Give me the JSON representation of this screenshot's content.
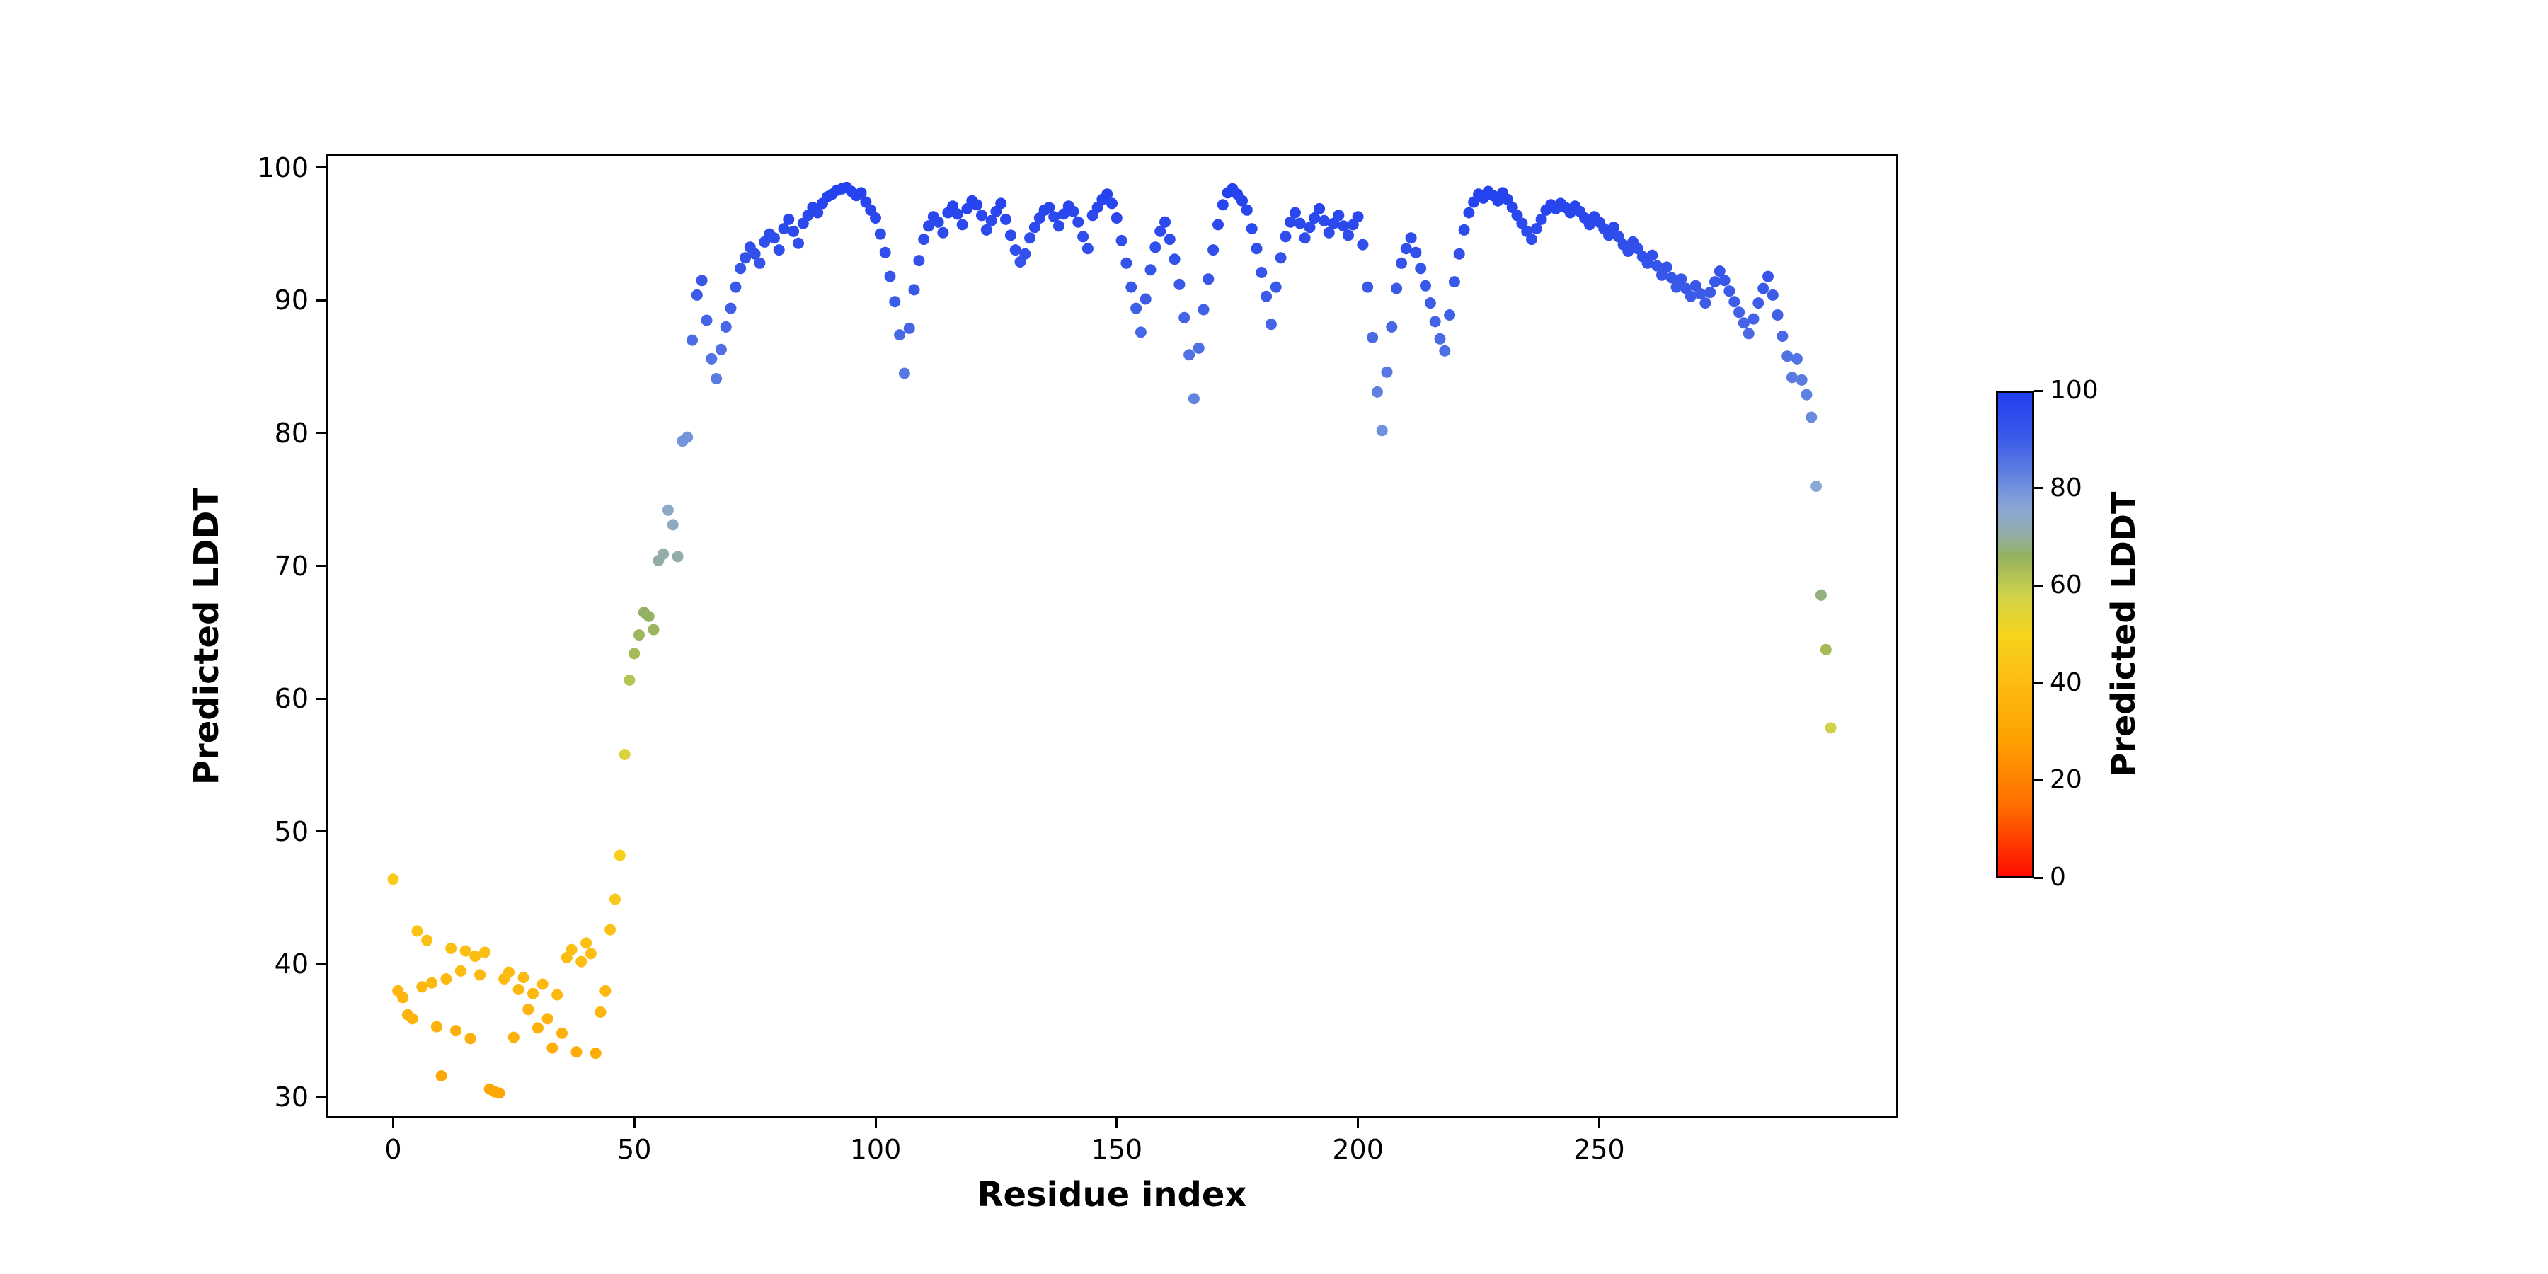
{
  "figure": {
    "background_color": "#ffffff"
  },
  "chart_data": {
    "type": "scatter",
    "title": "",
    "xlabel": "Residue index",
    "ylabel": "Predicted LDDT",
    "grid": false,
    "legend": "none",
    "xlim": [
      -14,
      312
    ],
    "ylim": [
      28.4,
      101.0
    ],
    "xticks": [
      0,
      50,
      100,
      150,
      200,
      250
    ],
    "yticks": [
      30,
      40,
      50,
      60,
      70,
      80,
      90,
      100
    ],
    "marker_size": 8,
    "x_is_index": true,
    "y": [
      46.4,
      38.0,
      37.5,
      36.2,
      35.9,
      42.5,
      38.3,
      41.8,
      38.6,
      35.3,
      31.6,
      38.9,
      41.2,
      35.0,
      39.5,
      41.0,
      34.4,
      40.6,
      39.2,
      40.9,
      30.6,
      30.4,
      30.3,
      38.9,
      39.4,
      34.5,
      38.1,
      39.0,
      36.6,
      37.8,
      35.2,
      38.5,
      35.9,
      33.7,
      37.7,
      34.8,
      40.5,
      41.1,
      33.4,
      40.2,
      41.6,
      40.8,
      33.3,
      36.4,
      38.0,
      42.6,
      44.9,
      48.2,
      55.8,
      61.4,
      63.4,
      64.8,
      66.5,
      66.2,
      65.2,
      70.4,
      70.9,
      74.2,
      73.1,
      70.7,
      79.4,
      79.7,
      87.0,
      90.4,
      91.5,
      88.5,
      85.6,
      84.1,
      86.3,
      88.0,
      89.4,
      91.0,
      92.4,
      93.2,
      94.0,
      93.5,
      92.8,
      94.4,
      95.0,
      94.7,
      93.8,
      95.4,
      96.1,
      95.2,
      94.3,
      95.8,
      96.4,
      97.0,
      96.6,
      97.3,
      97.8,
      98.0,
      98.3,
      98.4,
      98.5,
      98.2,
      97.9,
      98.1,
      97.4,
      96.8,
      96.2,
      95.0,
      93.6,
      91.8,
      89.9,
      87.4,
      84.5,
      87.9,
      90.8,
      93.0,
      94.6,
      95.6,
      96.3,
      95.9,
      95.1,
      96.6,
      97.1,
      96.5,
      95.7,
      96.9,
      97.5,
      97.2,
      96.4,
      95.3,
      96.0,
      96.7,
      97.3,
      96.1,
      94.9,
      93.8,
      92.9,
      93.5,
      94.7,
      95.5,
      96.2,
      96.8,
      97.0,
      96.3,
      95.6,
      96.5,
      97.1,
      96.7,
      95.9,
      94.8,
      93.9,
      96.4,
      97.0,
      97.6,
      98.0,
      97.3,
      96.2,
      94.5,
      92.8,
      91.0,
      89.4,
      87.6,
      90.1,
      92.3,
      94.0,
      95.2,
      95.9,
      94.6,
      93.1,
      91.2,
      88.7,
      85.9,
      82.6,
      86.4,
      89.3,
      91.6,
      93.8,
      95.7,
      97.2,
      98.1,
      98.4,
      98.0,
      97.5,
      96.8,
      95.4,
      93.9,
      92.1,
      90.3,
      88.2,
      91.0,
      93.2,
      94.8,
      95.9,
      96.6,
      95.8,
      94.7,
      95.5,
      96.2,
      96.9,
      96.0,
      95.1,
      95.8,
      96.4,
      95.6,
      94.9,
      95.7,
      96.3,
      94.2,
      91.0,
      87.2,
      83.1,
      80.2,
      84.6,
      88.0,
      90.9,
      92.8,
      93.9,
      94.7,
      93.6,
      92.4,
      91.1,
      89.8,
      88.4,
      87.1,
      86.2,
      88.9,
      91.4,
      93.5,
      95.3,
      96.6,
      97.4,
      98.0,
      97.7,
      98.2,
      97.9,
      97.5,
      98.1,
      97.6,
      97.0,
      96.4,
      95.8,
      95.2,
      94.6,
      95.4,
      96.1,
      96.8,
      97.2,
      96.9,
      97.3,
      97.0,
      96.6,
      97.1,
      96.7,
      96.2,
      95.7,
      96.3,
      95.9,
      95.4,
      94.9,
      95.5,
      94.8,
      94.2,
      93.7,
      94.4,
      93.9,
      93.3,
      92.8,
      93.4,
      92.6,
      91.9,
      92.5,
      91.7,
      91.0,
      91.6,
      90.9,
      90.3,
      91.1,
      90.5,
      89.8,
      90.6,
      91.4,
      92.2,
      91.5,
      90.7,
      89.9,
      89.1,
      88.3,
      87.5,
      88.6,
      89.8,
      90.9,
      91.8,
      90.4,
      88.9,
      87.3,
      85.8,
      84.2,
      85.6,
      84.0,
      82.9,
      81.2,
      76.0,
      67.8,
      63.7,
      57.8
    ],
    "colorbar": {
      "label": "Predicted LDDT",
      "ticks": [
        0,
        20,
        40,
        60,
        80,
        100
      ],
      "vmin": 0,
      "vmax": 100,
      "colormap_stops": [
        [
          0,
          "#ff0a00"
        ],
        [
          15,
          "#ff6f00"
        ],
        [
          28,
          "#ffa000"
        ],
        [
          40,
          "#fcbc12"
        ],
        [
          50,
          "#f7d41e"
        ],
        [
          58,
          "#cfd24a"
        ],
        [
          66,
          "#94b25f"
        ],
        [
          71,
          "#93acae"
        ],
        [
          76,
          "#8aa7d6"
        ],
        [
          82,
          "#6486de"
        ],
        [
          90,
          "#3c5ce8"
        ],
        [
          100,
          "#1f3cf0"
        ]
      ]
    }
  }
}
